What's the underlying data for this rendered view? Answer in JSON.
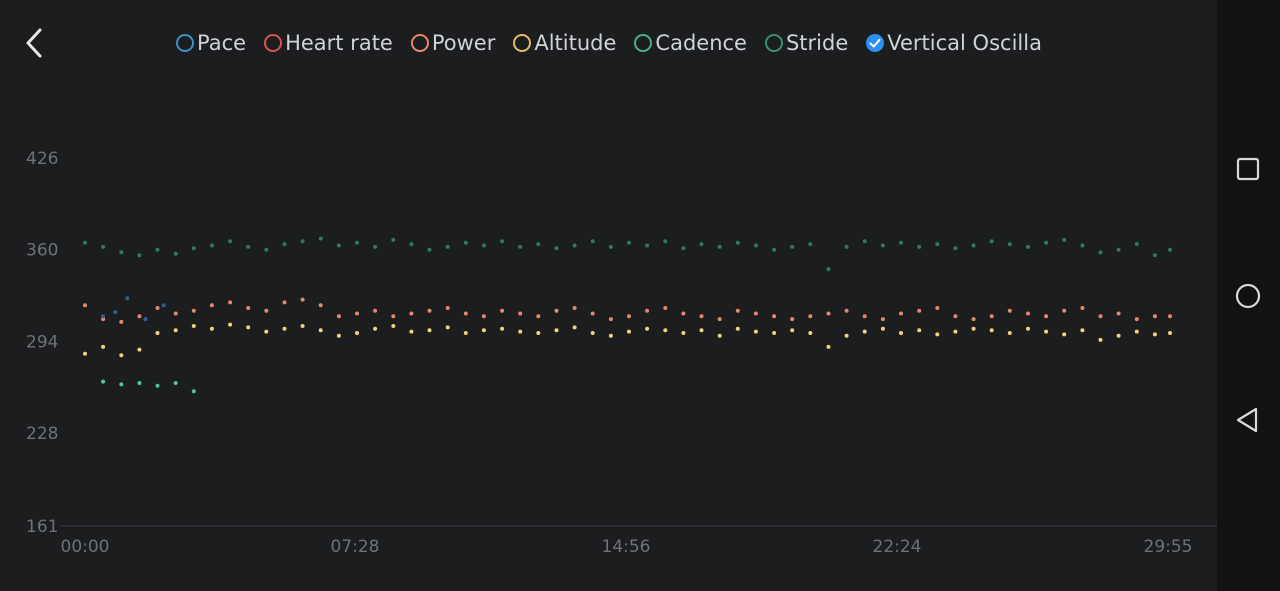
{
  "legend": [
    {
      "label": "Pace",
      "color": "#3f8fc9",
      "checked": false
    },
    {
      "label": "Heart rate",
      "color": "#d9534f",
      "checked": false
    },
    {
      "label": "Power",
      "color": "#e8866a",
      "checked": false
    },
    {
      "label": "Altitude",
      "color": "#e9b76a",
      "checked": false
    },
    {
      "label": "Cadence",
      "color": "#4caf8a",
      "checked": false
    },
    {
      "label": "Stride",
      "color": "#3a8f6e",
      "checked": false
    },
    {
      "label": "Vertical Oscilla",
      "color": "#2d8ff0",
      "checked": true
    }
  ],
  "icons": {
    "back": "chevron-left-icon",
    "recent": "square-icon",
    "home": "circle-icon",
    "nav_back": "triangle-left-icon"
  },
  "chart_data": {
    "type": "scatter",
    "ylim": [
      161,
      426
    ],
    "yticks": [
      "426",
      "360",
      "294",
      "228",
      "161"
    ],
    "xticks": [
      "00:00",
      "07:28",
      "14:56",
      "22:24",
      "29:55"
    ],
    "xlim_seconds": [
      0,
      1795
    ],
    "series": [
      {
        "color": "#2f7a5a",
        "x": [
          0,
          30,
          60,
          90,
          120,
          150,
          180,
          210,
          240,
          270,
          300,
          330,
          360,
          390,
          420,
          450,
          480,
          510,
          540,
          570,
          600,
          630,
          660,
          690,
          720,
          750,
          780,
          810,
          840,
          870,
          900,
          930,
          960,
          990,
          1020,
          1050,
          1080,
          1110,
          1140,
          1170,
          1200,
          1230,
          1260,
          1290,
          1320,
          1350,
          1380,
          1410,
          1440,
          1470,
          1500,
          1530,
          1560,
          1590,
          1620,
          1650,
          1680,
          1710,
          1740,
          1770,
          1795
        ],
        "y": [
          365,
          362,
          358,
          356,
          360,
          357,
          361,
          363,
          366,
          362,
          360,
          364,
          366,
          368,
          363,
          365,
          362,
          367,
          364,
          360,
          362,
          365,
          363,
          366,
          362,
          364,
          361,
          363,
          366,
          362,
          365,
          363,
          366,
          361,
          364,
          362,
          365,
          363,
          360,
          362,
          364,
          346,
          362,
          366,
          363,
          365,
          362,
          364,
          361,
          363,
          366,
          364,
          362,
          365,
          367,
          363,
          358,
          360,
          364,
          356,
          360
        ]
      },
      {
        "color": "#e8866a",
        "x": [
          0,
          30,
          60,
          90,
          120,
          150,
          180,
          210,
          240,
          270,
          300,
          330,
          360,
          390,
          420,
          450,
          480,
          510,
          540,
          570,
          600,
          630,
          660,
          690,
          720,
          750,
          780,
          810,
          840,
          870,
          900,
          930,
          960,
          990,
          1020,
          1050,
          1080,
          1110,
          1140,
          1170,
          1200,
          1230,
          1260,
          1290,
          1320,
          1350,
          1380,
          1410,
          1440,
          1470,
          1500,
          1530,
          1560,
          1590,
          1620,
          1650,
          1680,
          1710,
          1740,
          1770,
          1795
        ],
        "y": [
          320,
          310,
          308,
          312,
          318,
          314,
          316,
          320,
          322,
          318,
          316,
          322,
          324,
          320,
          312,
          314,
          316,
          312,
          314,
          316,
          318,
          314,
          312,
          316,
          314,
          312,
          316,
          318,
          314,
          310,
          312,
          316,
          318,
          314,
          312,
          310,
          316,
          314,
          312,
          310,
          312,
          314,
          316,
          312,
          310,
          314,
          316,
          318,
          312,
          310,
          312,
          316,
          314,
          312,
          316,
          318,
          312,
          314,
          310,
          312,
          312
        ]
      },
      {
        "color": "#f0d27a",
        "x": [
          0,
          30,
          60,
          90,
          120,
          150,
          180,
          210,
          240,
          270,
          300,
          330,
          360,
          390,
          420,
          450,
          480,
          510,
          540,
          570,
          600,
          630,
          660,
          690,
          720,
          750,
          780,
          810,
          840,
          870,
          900,
          930,
          960,
          990,
          1020,
          1050,
          1080,
          1110,
          1140,
          1170,
          1200,
          1230,
          1260,
          1290,
          1320,
          1350,
          1380,
          1410,
          1440,
          1470,
          1500,
          1530,
          1560,
          1590,
          1620,
          1650,
          1680,
          1710,
          1740,
          1770,
          1795
        ],
        "y": [
          285,
          290,
          284,
          288,
          300,
          302,
          305,
          303,
          306,
          304,
          301,
          303,
          305,
          302,
          298,
          300,
          303,
          305,
          301,
          302,
          304,
          300,
          302,
          303,
          301,
          300,
          302,
          304,
          300,
          298,
          301,
          303,
          302,
          300,
          302,
          298,
          303,
          301,
          300,
          302,
          300,
          290,
          298,
          301,
          303,
          300,
          302,
          299,
          301,
          303,
          302,
          300,
          303,
          301,
          299,
          302,
          295,
          298,
          301,
          299,
          300
        ]
      },
      {
        "color": "#4fc79a",
        "x": [
          30,
          60,
          90,
          120,
          150,
          180
        ],
        "y": [
          265,
          263,
          264,
          262,
          264,
          258
        ]
      },
      {
        "color": "#2f5f9a",
        "x": [
          30,
          50,
          70,
          100,
          130
        ],
        "y": [
          312,
          315,
          325,
          310,
          320
        ]
      }
    ]
  }
}
